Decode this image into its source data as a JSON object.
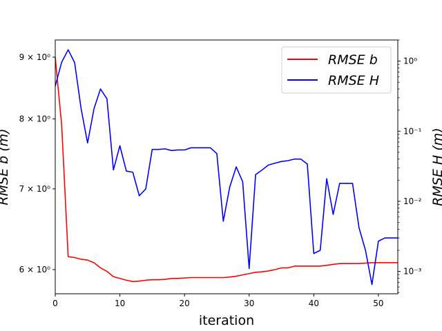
{
  "chart_data": {
    "type": "line",
    "x": [
      0,
      1,
      2,
      3,
      4,
      5,
      6,
      7,
      8,
      9,
      10,
      11,
      12,
      13,
      14,
      15,
      16,
      17,
      18,
      19,
      20,
      21,
      22,
      23,
      24,
      25,
      26,
      27,
      28,
      29,
      30,
      31,
      32,
      33,
      34,
      35,
      36,
      37,
      38,
      39,
      40,
      41,
      42,
      43,
      44,
      45,
      46,
      47,
      48,
      49,
      50,
      51,
      52,
      53
    ],
    "series": [
      {
        "name": "RMSE b",
        "axis": "left",
        "color": "#ff0000",
        "values": [
          9.0,
          7.9,
          6.15,
          6.14,
          6.12,
          6.11,
          6.08,
          6.02,
          5.98,
          5.92,
          5.9,
          5.88,
          5.865,
          5.87,
          5.88,
          5.885,
          5.885,
          5.89,
          5.9,
          5.9,
          5.905,
          5.91,
          5.91,
          5.91,
          5.91,
          5.91,
          5.91,
          5.915,
          5.925,
          5.94,
          5.955,
          5.97,
          5.975,
          5.985,
          6.0,
          6.02,
          6.02,
          6.04,
          6.04,
          6.04,
          6.04,
          6.04,
          6.05,
          6.06,
          6.07,
          6.07,
          6.07,
          6.07,
          6.075,
          6.08,
          6.08,
          6.08,
          6.08,
          6.08
        ]
      },
      {
        "name": "RMSE H",
        "axis": "right",
        "color": "#0000ff",
        "values": [
          0.44,
          0.97,
          1.45,
          0.95,
          0.21,
          0.068,
          0.21,
          0.4,
          0.29,
          0.028,
          0.062,
          0.027,
          0.026,
          0.012,
          0.015,
          0.055,
          0.055,
          0.056,
          0.053,
          0.054,
          0.054,
          0.058,
          0.058,
          0.058,
          0.058,
          0.048,
          0.0052,
          0.016,
          0.031,
          0.019,
          0.0011,
          0.024,
          0.028,
          0.033,
          0.035,
          0.037,
          0.038,
          0.04,
          0.04,
          0.034,
          0.0018,
          0.002,
          0.021,
          0.0065,
          0.018,
          0.018,
          0.018,
          0.0042,
          0.002,
          0.00065,
          0.0027,
          0.003,
          0.003,
          0.003
        ]
      }
    ],
    "xlabel": "iteration",
    "ylabel_left": "RMSE b (m)",
    "ylabel_right": "RMSE H (m)",
    "xlim": [
      0,
      53
    ],
    "ylim_left": [
      5.73,
      9.3
    ],
    "ylim_right": [
      0.00048,
      2.0
    ],
    "yscale_left": "log",
    "yscale_right": "log",
    "xticks": [
      0,
      10,
      20,
      30,
      40,
      50
    ],
    "yticks_left": [
      {
        "value": 6,
        "label": "6 × 10⁰"
      },
      {
        "value": 7,
        "label": "7 × 10⁰"
      },
      {
        "value": 8,
        "label": "8 × 10⁰"
      },
      {
        "value": 9,
        "label": "9 × 10⁰"
      }
    ],
    "yticks_right": [
      {
        "value": 0.001,
        "label": "10⁻³"
      },
      {
        "value": 0.01,
        "label": "10⁻²"
      },
      {
        "value": 0.1,
        "label": "10⁻¹"
      },
      {
        "value": 1,
        "label": "10⁰"
      }
    ],
    "legend_position": "top-right",
    "grid": false
  }
}
